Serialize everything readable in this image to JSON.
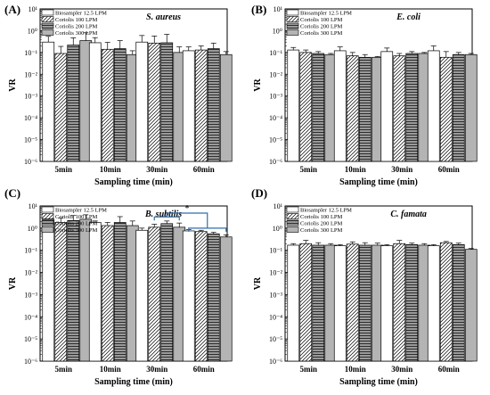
{
  "chart_data": [
    {
      "type": "bar",
      "panel_label": "(A)",
      "organism": "S. aureus",
      "xlabel": "Sampling time (min)",
      "ylabel": "VR",
      "categories": [
        "5min",
        "10min",
        "30min",
        "60min"
      ],
      "yscale": "log",
      "ylim": [
        1e-06,
        10
      ],
      "ytick_labels": [
        "10⁻⁶",
        "10⁻⁵",
        "10⁻⁴",
        "10⁻³",
        "10⁻²",
        "10⁻¹",
        "10⁰",
        "10¹"
      ],
      "legend_position": "top-left",
      "series": [
        {
          "name": "Biosampler 12.5 LPM",
          "values": [
            0.3,
            0.28,
            0.3,
            0.12
          ],
          "errors": [
            0.25,
            0.2,
            0.3,
            0.06
          ]
        },
        {
          "name": "Coriolis 100 LPM",
          "values": [
            0.09,
            0.14,
            0.27,
            0.13
          ],
          "errors": [
            0.1,
            0.15,
            0.3,
            0.07
          ]
        },
        {
          "name": "Coriolis 200 LPM",
          "values": [
            0.22,
            0.15,
            0.28,
            0.15
          ],
          "errors": [
            0.25,
            0.2,
            0.4,
            0.12
          ]
        },
        {
          "name": "Coriolis 300 LPM",
          "values": [
            0.35,
            0.08,
            0.1,
            0.08
          ],
          "errors": [
            0.45,
            0.04,
            0.08,
            0.03
          ]
        }
      ]
    },
    {
      "type": "bar",
      "panel_label": "(B)",
      "organism": "E. coli",
      "xlabel": "Sampling time (min)",
      "ylabel": "VR",
      "categories": [
        "5min",
        "10min",
        "30min",
        "60min"
      ],
      "yscale": "log",
      "ylim": [
        1e-06,
        10
      ],
      "ytick_labels": [
        "10⁻⁶",
        "10⁻⁵",
        "10⁻⁴",
        "10⁻³",
        "10⁻²",
        "10⁻¹",
        "10⁰",
        "10¹"
      ],
      "legend_position": "top-left",
      "series": [
        {
          "name": "Biosampler 12.5 LPM",
          "values": [
            0.13,
            0.12,
            0.11,
            0.12
          ],
          "errors": [
            0.04,
            0.06,
            0.05,
            0.08
          ]
        },
        {
          "name": "Coriolis 100 LPM",
          "values": [
            0.1,
            0.07,
            0.07,
            0.06
          ],
          "errors": [
            0.03,
            0.03,
            0.02,
            0.05
          ]
        },
        {
          "name": "Coriolis 200 LPM",
          "values": [
            0.09,
            0.06,
            0.09,
            0.08
          ],
          "errors": [
            0.02,
            0.02,
            0.02,
            0.02
          ]
        },
        {
          "name": "Coriolis 300 LPM",
          "values": [
            0.08,
            0.06,
            0.09,
            0.08
          ],
          "errors": [
            0.01,
            0.005,
            0.01,
            0.01
          ]
        }
      ]
    },
    {
      "type": "bar",
      "panel_label": "(C)",
      "organism": "B. subtilis",
      "xlabel": "Sampling time (min)",
      "ylabel": "VR",
      "categories": [
        "5min",
        "10min",
        "30min",
        "60min"
      ],
      "yscale": "log",
      "ylim": [
        1e-06,
        10
      ],
      "ytick_labels": [
        "10⁻⁶",
        "10⁻⁵",
        "10⁻⁴",
        "10⁻³",
        "10⁻²",
        "10⁻¹",
        "10⁰",
        "10¹"
      ],
      "legend_position": "top-left",
      "annotation": "*",
      "series": [
        {
          "name": "Biosampler 12.5 LPM",
          "values": [
            2.5,
            1.8,
            0.8,
            0.75
          ],
          "errors": [
            0.5,
            0.3,
            0.2,
            0.1
          ]
        },
        {
          "name": "Coriolis 100 LPM",
          "values": [
            1.8,
            1.3,
            1.1,
            0.7
          ],
          "errors": [
            1.0,
            0.5,
            0.4,
            0.1
          ]
        },
        {
          "name": "Coriolis 200 LPM",
          "values": [
            2.2,
            1.8,
            1.6,
            0.55
          ],
          "errors": [
            1.5,
            1.5,
            0.5,
            0.1
          ]
        },
        {
          "name": "Coriolis 300 LPM",
          "values": [
            2.5,
            1.3,
            1.1,
            0.4
          ],
          "errors": [
            1.5,
            0.8,
            0.6,
            0.1
          ]
        }
      ]
    },
    {
      "type": "bar",
      "panel_label": "(D)",
      "organism": "C. famata",
      "xlabel": "Sampling time (min)",
      "ylabel": "VR",
      "categories": [
        "5min",
        "10min",
        "30min",
        "60min"
      ],
      "yscale": "log",
      "ylim": [
        1e-06,
        10
      ],
      "ytick_labels": [
        "10⁻⁶",
        "10⁻⁵",
        "10⁻⁴",
        "10⁻³",
        "10⁻²",
        "10⁻¹",
        "10⁰",
        "10¹"
      ],
      "legend_position": "top-left",
      "series": [
        {
          "name": "Biosampler 12.5 LPM",
          "values": [
            0.17,
            0.16,
            0.16,
            0.16
          ],
          "errors": [
            0.03,
            0.02,
            0.02,
            0.02
          ]
        },
        {
          "name": "Coriolis 100 LPM",
          "values": [
            0.2,
            0.19,
            0.2,
            0.22
          ],
          "errors": [
            0.08,
            0.05,
            0.08,
            0.03
          ]
        },
        {
          "name": "Coriolis 200 LPM",
          "values": [
            0.17,
            0.17,
            0.18,
            0.18
          ],
          "errors": [
            0.05,
            0.05,
            0.03,
            0.03
          ]
        },
        {
          "name": "Coriolis 300 LPM",
          "values": [
            0.17,
            0.17,
            0.17,
            0.11
          ],
          "errors": [
            0.03,
            0.04,
            0.03,
            0.01
          ]
        }
      ]
    }
  ]
}
